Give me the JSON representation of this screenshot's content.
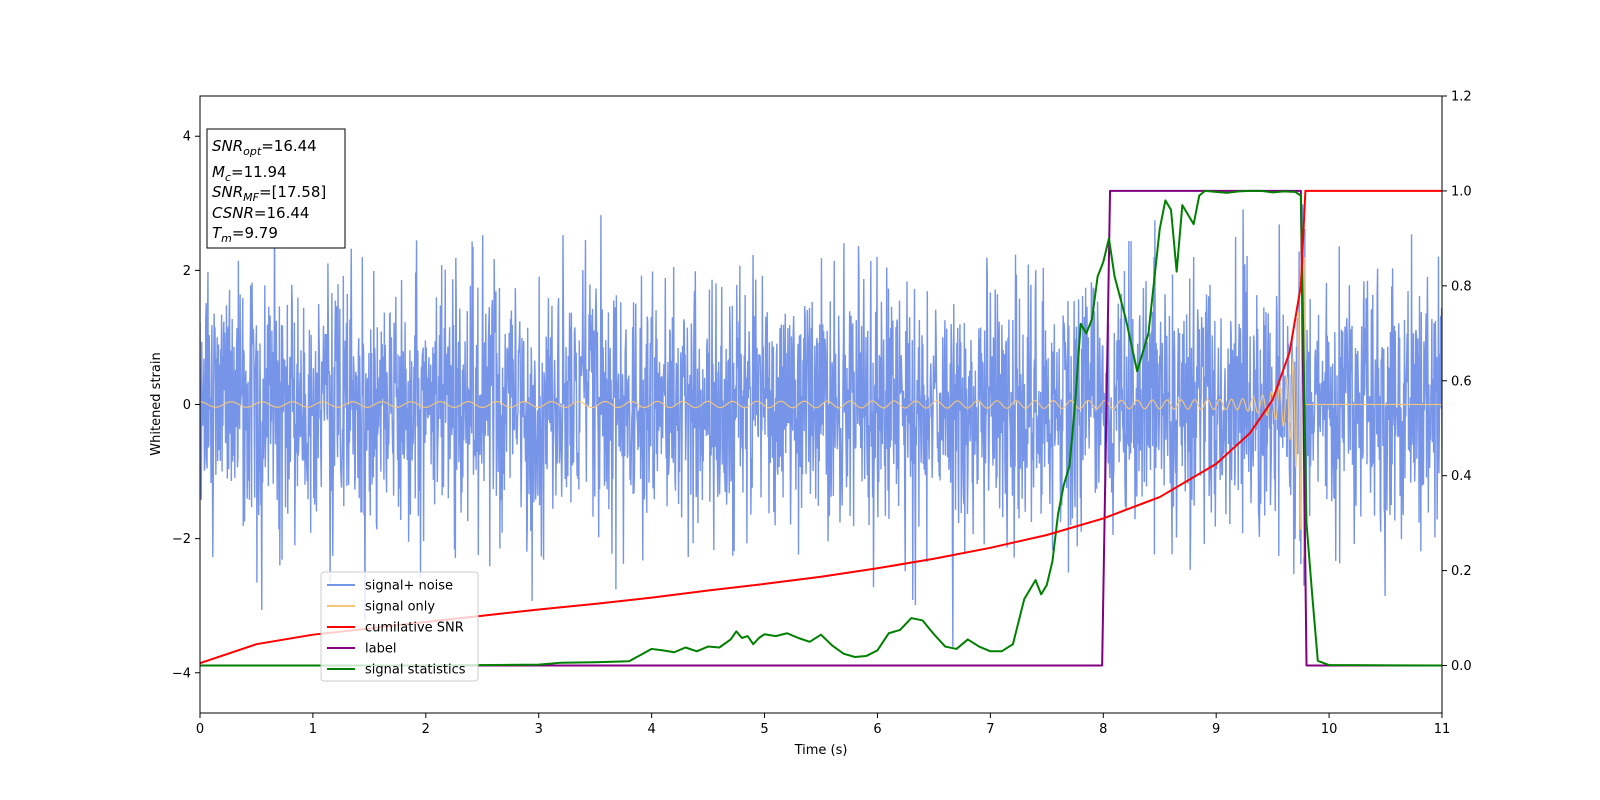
{
  "chart_data": {
    "type": "line",
    "xlabel": "Time (s)",
    "ylabel": "Whitened strain",
    "xlim": [
      0,
      11
    ],
    "ylim": [
      -4.6,
      4.6
    ],
    "ylim_right": [
      -0.1,
      1.2
    ],
    "x_ticks": [
      "0",
      "1",
      "2",
      "3",
      "4",
      "5",
      "6",
      "7",
      "8",
      "9",
      "10",
      "11"
    ],
    "y_ticks": [
      "−4",
      "−2",
      "0",
      "2",
      "4"
    ],
    "y_ticks_right": [
      "0.0",
      "0.2",
      "0.4",
      "0.6",
      "0.8",
      "1.0",
      "1.2"
    ],
    "grid": false,
    "legend_position": "lower-left",
    "annotation": [
      {
        "base": "SNR",
        "sub": "opt",
        "value": "=16.44"
      },
      {
        "base": "M",
        "sub": "c",
        "value": "=11.94"
      },
      {
        "base": "SNR",
        "sub": "MF",
        "value": "=[17.58]"
      },
      {
        "base": "CSNR",
        "sub": "",
        "value": "=16.44"
      },
      {
        "base": "T",
        "sub": "m",
        "value": "=9.79"
      }
    ],
    "merger_time": 9.79,
    "series": [
      {
        "name": "signal+ noise",
        "color": "#7694e8",
        "axis": "left",
        "kind": "noise",
        "std": 0.95,
        "sample_rate_hz": 256
      },
      {
        "name": "signal only",
        "color": "#f5c67a",
        "axis": "left",
        "kind": "chirp",
        "amplitude_start": 0.04,
        "amplitude_peak": 2.3
      },
      {
        "name": "cumilative SNR",
        "color": "#ff0000",
        "axis": "right",
        "x": [
          0,
          0.5,
          1,
          1.5,
          2,
          2.5,
          3,
          3.5,
          4,
          4.5,
          5,
          5.5,
          6,
          6.5,
          7,
          7.5,
          8,
          8.5,
          9,
          9.3,
          9.5,
          9.65,
          9.75,
          9.79,
          11
        ],
        "y": [
          0.005,
          0.045,
          0.065,
          0.078,
          0.092,
          0.105,
          0.118,
          0.13,
          0.143,
          0.158,
          0.172,
          0.187,
          0.205,
          0.225,
          0.248,
          0.275,
          0.31,
          0.355,
          0.425,
          0.49,
          0.56,
          0.66,
          0.8,
          1.0,
          1.0
        ]
      },
      {
        "name": "label",
        "color": "#800080",
        "axis": "right",
        "x": [
          0,
          7.99,
          8.06,
          9.75,
          9.8,
          11
        ],
        "y": [
          0.0,
          0.0,
          1.0,
          1.0,
          0.0,
          0.0
        ]
      },
      {
        "name": "signal statistics",
        "color": "#008000",
        "axis": "right",
        "x": [
          0,
          1,
          2,
          3,
          3.2,
          3.5,
          3.8,
          3.9,
          4.0,
          4.1,
          4.2,
          4.3,
          4.4,
          4.5,
          4.6,
          4.7,
          4.75,
          4.8,
          4.85,
          4.9,
          4.95,
          5.0,
          5.1,
          5.2,
          5.3,
          5.4,
          5.5,
          5.6,
          5.7,
          5.8,
          5.9,
          6.0,
          6.1,
          6.2,
          6.3,
          6.4,
          6.5,
          6.6,
          6.7,
          6.8,
          6.9,
          7.0,
          7.1,
          7.2,
          7.3,
          7.4,
          7.45,
          7.5,
          7.55,
          7.6,
          7.65,
          7.7,
          7.75,
          7.8,
          7.85,
          7.9,
          7.95,
          8.0,
          8.05,
          8.1,
          8.2,
          8.3,
          8.4,
          8.5,
          8.55,
          8.6,
          8.65,
          8.7,
          8.8,
          8.85,
          8.9,
          9.0,
          9.1,
          9.2,
          9.3,
          9.4,
          9.5,
          9.6,
          9.7,
          9.75,
          9.8,
          9.85,
          9.9,
          10.0,
          11.0
        ],
        "y": [
          0.0,
          0.0,
          0.0,
          0.002,
          0.006,
          0.007,
          0.009,
          0.022,
          0.035,
          0.032,
          0.028,
          0.038,
          0.03,
          0.04,
          0.038,
          0.055,
          0.072,
          0.058,
          0.062,
          0.045,
          0.058,
          0.066,
          0.062,
          0.068,
          0.058,
          0.05,
          0.065,
          0.042,
          0.025,
          0.018,
          0.02,
          0.032,
          0.068,
          0.075,
          0.1,
          0.095,
          0.066,
          0.04,
          0.035,
          0.055,
          0.04,
          0.03,
          0.03,
          0.045,
          0.14,
          0.18,
          0.15,
          0.17,
          0.22,
          0.32,
          0.38,
          0.42,
          0.55,
          0.72,
          0.7,
          0.73,
          0.82,
          0.85,
          0.9,
          0.82,
          0.73,
          0.62,
          0.7,
          0.92,
          0.98,
          0.96,
          0.83,
          0.97,
          0.93,
          0.99,
          1.0,
          0.998,
          0.996,
          0.999,
          1.0,
          1.0,
          0.997,
          0.999,
          0.998,
          0.99,
          0.3,
          0.15,
          0.01,
          0.001,
          0.0
        ]
      }
    ]
  }
}
